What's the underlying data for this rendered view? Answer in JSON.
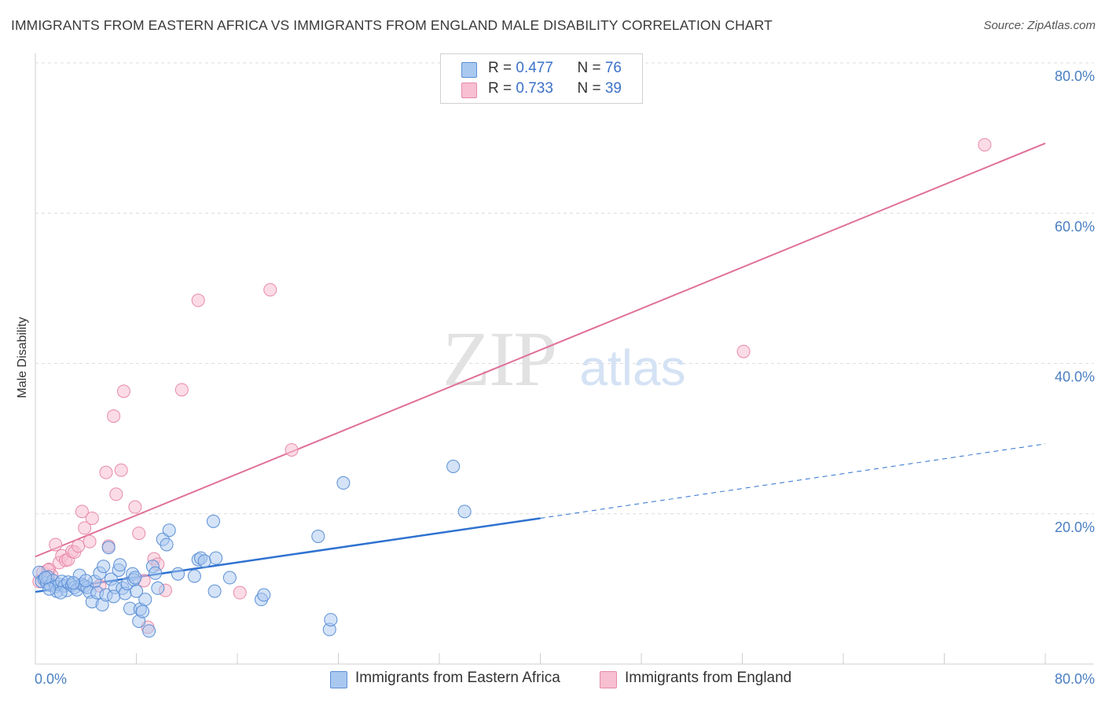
{
  "title": "IMMIGRANTS FROM EASTERN AFRICA VS IMMIGRANTS FROM ENGLAND MALE DISABILITY CORRELATION CHART",
  "source": "Source: ZipAtlas.com",
  "colors": {
    "blue_fill": "#a9c8f0",
    "blue_stroke": "#5b8fd6",
    "blue_line": "#2f72d0",
    "pink_fill": "#f7bfd1",
    "pink_stroke": "#e88aa8",
    "pink_line": "#e0709a",
    "grid": "#dcdcdc",
    "tick_text": "#4a7fc1"
  },
  "legend": {
    "rows": [
      {
        "r_label": "R = ",
        "r_value": "0.477",
        "n_label": "N = ",
        "n_value": "76"
      },
      {
        "r_label": "R = ",
        "r_value": "0.733",
        "n_label": "N = ",
        "n_value": "39"
      }
    ]
  },
  "watermark": {
    "zip": "ZIP",
    "atlas": "atlas"
  },
  "chart_data": {
    "type": "scatter",
    "title": "IMMIGRANTS FROM EASTERN AFRICA VS IMMIGRANTS FROM ENGLAND MALE DISABILITY CORRELATION CHART",
    "xlabel": "",
    "ylabel": "Male Disability",
    "xlim": [
      0,
      80
    ],
    "ylim": [
      0,
      80
    ],
    "x_tick_labels": [
      "0.0%",
      "80.0%"
    ],
    "y_tick_labels": [
      "20.0%",
      "40.0%",
      "60.0%",
      "80.0%"
    ],
    "y_ticks": [
      20,
      40,
      60,
      80
    ],
    "legend_position": "top-center",
    "series": [
      {
        "name": "Immigrants from Eastern Africa",
        "r": 0.477,
        "n": 76,
        "trend": {
          "x0": 0,
          "y0": 9.6,
          "x1": 40,
          "y1": 19.4,
          "dashed_to_x": 80,
          "dashed_to_y": 29.3
        },
        "points": [
          [
            0.3,
            12.2
          ],
          [
            0.5,
            11.0
          ],
          [
            0.7,
            11.3
          ],
          [
            0.9,
            10.8
          ],
          [
            1.0,
            11.6
          ],
          [
            1.2,
            10.5
          ],
          [
            1.4,
            11.1
          ],
          [
            1.6,
            10.3
          ],
          [
            1.7,
            9.7
          ],
          [
            1.9,
            10.6
          ],
          [
            2.1,
            11.0
          ],
          [
            2.3,
            10.4
          ],
          [
            2.5,
            9.8
          ],
          [
            2.6,
            10.9
          ],
          [
            2.9,
            10.5
          ],
          [
            3.1,
            10.2
          ],
          [
            3.3,
            9.9
          ],
          [
            3.5,
            11.8
          ],
          [
            3.7,
            10.6
          ],
          [
            3.9,
            10.4
          ],
          [
            4.1,
            10.2
          ],
          [
            4.3,
            9.6
          ],
          [
            4.5,
            8.3
          ],
          [
            4.7,
            11.0
          ],
          [
            4.9,
            9.5
          ],
          [
            5.1,
            12.1
          ],
          [
            5.3,
            7.9
          ],
          [
            5.4,
            13.0
          ],
          [
            5.6,
            9.2
          ],
          [
            5.8,
            15.5
          ],
          [
            6.0,
            11.3
          ],
          [
            6.3,
            10.2
          ],
          [
            6.6,
            12.5
          ],
          [
            6.7,
            13.2
          ],
          [
            6.9,
            10.1
          ],
          [
            7.1,
            9.4
          ],
          [
            7.3,
            10.7
          ],
          [
            7.5,
            7.4
          ],
          [
            7.7,
            12.0
          ],
          [
            7.8,
            11.2
          ],
          [
            8.0,
            9.7
          ],
          [
            8.2,
            5.7
          ],
          [
            8.3,
            7.3
          ],
          [
            8.5,
            7.0
          ],
          [
            8.7,
            8.6
          ],
          [
            9.0,
            4.4
          ],
          [
            9.3,
            13.0
          ],
          [
            9.5,
            12.1
          ],
          [
            9.7,
            10.1
          ],
          [
            10.1,
            16.6
          ],
          [
            10.4,
            15.9
          ],
          [
            10.6,
            17.8
          ],
          [
            11.3,
            12.0
          ],
          [
            12.6,
            11.7
          ],
          [
            12.9,
            13.9
          ],
          [
            13.1,
            14.1
          ],
          [
            13.4,
            13.7
          ],
          [
            14.1,
            19.0
          ],
          [
            14.2,
            9.7
          ],
          [
            14.3,
            14.1
          ],
          [
            15.4,
            11.5
          ],
          [
            17.9,
            8.6
          ],
          [
            18.1,
            9.2
          ],
          [
            22.4,
            17.0
          ],
          [
            23.3,
            4.6
          ],
          [
            23.4,
            5.9
          ],
          [
            24.4,
            24.1
          ],
          [
            33.1,
            26.3
          ],
          [
            34.0,
            20.3
          ],
          [
            2.0,
            9.5
          ],
          [
            3.0,
            10.8
          ],
          [
            1.1,
            10.0
          ],
          [
            4.0,
            11.1
          ],
          [
            6.2,
            9.0
          ],
          [
            7.9,
            11.5
          ],
          [
            0.8,
            11.5
          ]
        ]
      },
      {
        "name": "Immigrants from England",
        "r": 0.733,
        "n": 39,
        "trend": {
          "x0": 0,
          "y0": 14.3,
          "x1": 80,
          "y1": 69.3
        },
        "points": [
          [
            0.3,
            11.0
          ],
          [
            0.6,
            12.2
          ],
          [
            0.9,
            11.4
          ],
          [
            1.1,
            12.6
          ],
          [
            1.3,
            11.8
          ],
          [
            1.6,
            15.9
          ],
          [
            1.9,
            13.5
          ],
          [
            2.1,
            14.4
          ],
          [
            2.4,
            13.8
          ],
          [
            2.6,
            13.9
          ],
          [
            2.9,
            15.0
          ],
          [
            3.1,
            14.9
          ],
          [
            3.4,
            15.7
          ],
          [
            3.7,
            20.3
          ],
          [
            3.9,
            18.1
          ],
          [
            4.3,
            16.3
          ],
          [
            4.5,
            19.4
          ],
          [
            5.1,
            10.4
          ],
          [
            5.6,
            25.5
          ],
          [
            5.8,
            15.7
          ],
          [
            6.2,
            33.0
          ],
          [
            6.4,
            22.6
          ],
          [
            6.8,
            25.8
          ],
          [
            7.0,
            36.3
          ],
          [
            7.9,
            20.9
          ],
          [
            8.2,
            17.4
          ],
          [
            8.6,
            11.1
          ],
          [
            8.9,
            4.9
          ],
          [
            9.4,
            14.0
          ],
          [
            9.7,
            13.3
          ],
          [
            10.3,
            9.8
          ],
          [
            11.6,
            36.5
          ],
          [
            12.9,
            48.4
          ],
          [
            16.2,
            9.5
          ],
          [
            18.6,
            49.8
          ],
          [
            20.3,
            28.5
          ],
          [
            56.1,
            41.6
          ],
          [
            75.2,
            69.1
          ],
          [
            1.0,
            12.5
          ]
        ]
      }
    ]
  },
  "bottom_legend": {
    "items": [
      {
        "label": "Immigrants from Eastern Africa"
      },
      {
        "label": "Immigrants from England"
      }
    ]
  }
}
